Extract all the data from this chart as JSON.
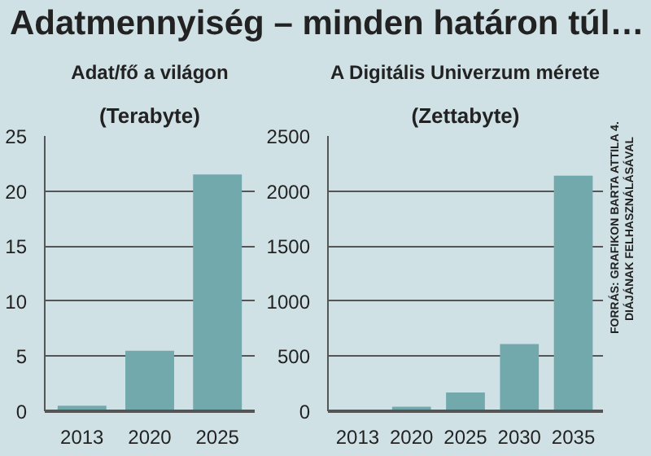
{
  "chart_data": [
    {
      "type": "bar",
      "title": "Adat/fő a világon",
      "subtitle": "(Terabyte)",
      "annotations": [
        "Adatmennyiség – minden határon túl…"
      ],
      "categories": [
        "2013",
        "2020",
        "2025"
      ],
      "values": [
        0.5,
        5.5,
        21.5
      ],
      "color": "#72a9ad",
      "ylim": [
        0,
        25
      ],
      "yticks": [
        0,
        5,
        10,
        15,
        20,
        25
      ],
      "grid": "y"
    },
    {
      "type": "bar",
      "title": "A Digitális Univerzum mérete",
      "subtitle": "(Zettabyte)",
      "annotations": [
        "FORRÁS: GRAFIKON BARTA ATTILA 4. DIÁJÁNAK FELHASZNÁLÁSÁVAL"
      ],
      "categories": [
        "2013",
        "2020",
        "2025",
        "2030",
        "2035"
      ],
      "values": [
        null,
        40,
        170,
        610,
        2140
      ],
      "color": "#72a9ad",
      "ylim": [
        0,
        2500
      ],
      "yticks": [
        0,
        500,
        1000,
        1500,
        2000,
        2500
      ],
      "grid": "y"
    }
  ]
}
